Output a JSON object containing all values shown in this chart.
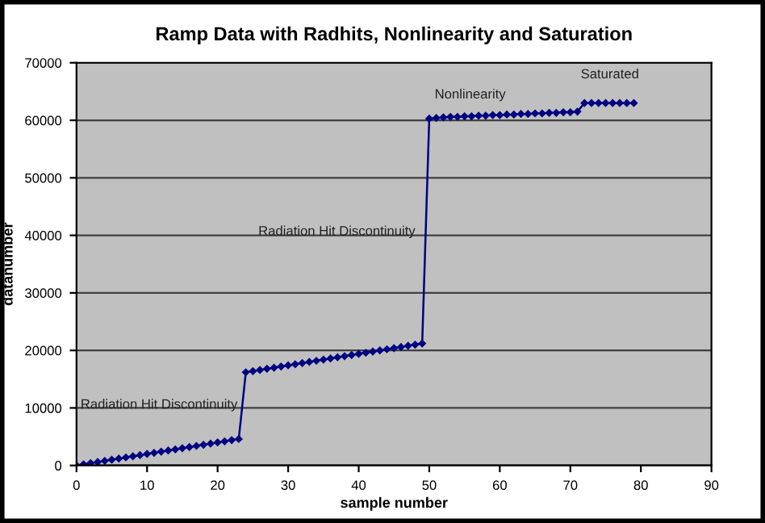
{
  "chart_data": {
    "type": "line",
    "title": "Ramp Data with Radhits, Nonlinearity and Saturation",
    "xlabel": "sample number",
    "ylabel": "datanumber",
    "x": [
      0,
      1,
      2,
      3,
      4,
      5,
      6,
      7,
      8,
      9,
      10,
      11,
      12,
      13,
      14,
      15,
      16,
      17,
      18,
      19,
      20,
      21,
      22,
      23,
      24,
      25,
      26,
      27,
      28,
      29,
      30,
      31,
      32,
      33,
      34,
      35,
      36,
      37,
      38,
      39,
      40,
      41,
      42,
      43,
      44,
      45,
      46,
      47,
      48,
      49,
      50,
      51,
      52,
      53,
      54,
      55,
      56,
      57,
      58,
      59,
      60,
      61,
      62,
      63,
      64,
      65,
      66,
      67,
      68,
      69,
      70,
      71,
      72,
      73,
      74,
      75,
      76,
      77,
      78,
      79
    ],
    "series": [
      {
        "color": "#000080",
        "values": [
          0,
          200,
          400,
          600,
          800,
          1000,
          1200,
          1400,
          1600,
          1800,
          2000,
          2200,
          2400,
          2600,
          2800,
          3000,
          3200,
          3400,
          3600,
          3800,
          4000,
          4200,
          4400,
          4600,
          16200,
          16400,
          16600,
          16800,
          17000,
          17200,
          17400,
          17600,
          17800,
          18000,
          18200,
          18400,
          18600,
          18800,
          19000,
          19200,
          19400,
          19600,
          19800,
          20000,
          20200,
          20400,
          20600,
          20800,
          21000,
          21200,
          60300,
          60400,
          60500,
          60600,
          60600,
          60700,
          60700,
          60800,
          60800,
          60900,
          60900,
          61000,
          61000,
          61100,
          61100,
          61200,
          61200,
          61300,
          61300,
          61400,
          61400,
          61500,
          63000,
          63000,
          63000,
          63000,
          63000,
          63000,
          63000,
          63000
        ]
      }
    ],
    "xlim": [
      0,
      90
    ],
    "xticks": [
      0,
      10,
      20,
      30,
      40,
      50,
      60,
      70,
      80,
      90
    ],
    "ylim": [
      0,
      70000
    ],
    "yticks": [
      0,
      10000,
      20000,
      30000,
      40000,
      50000,
      60000,
      70000
    ],
    "grid": "y",
    "marker": "diamond",
    "line_style": "solid",
    "annotations": [
      "Radiation Hit Discontinuity",
      "Radiation Hit Discontinuity",
      "Nonlinearity",
      "Saturated"
    ]
  }
}
